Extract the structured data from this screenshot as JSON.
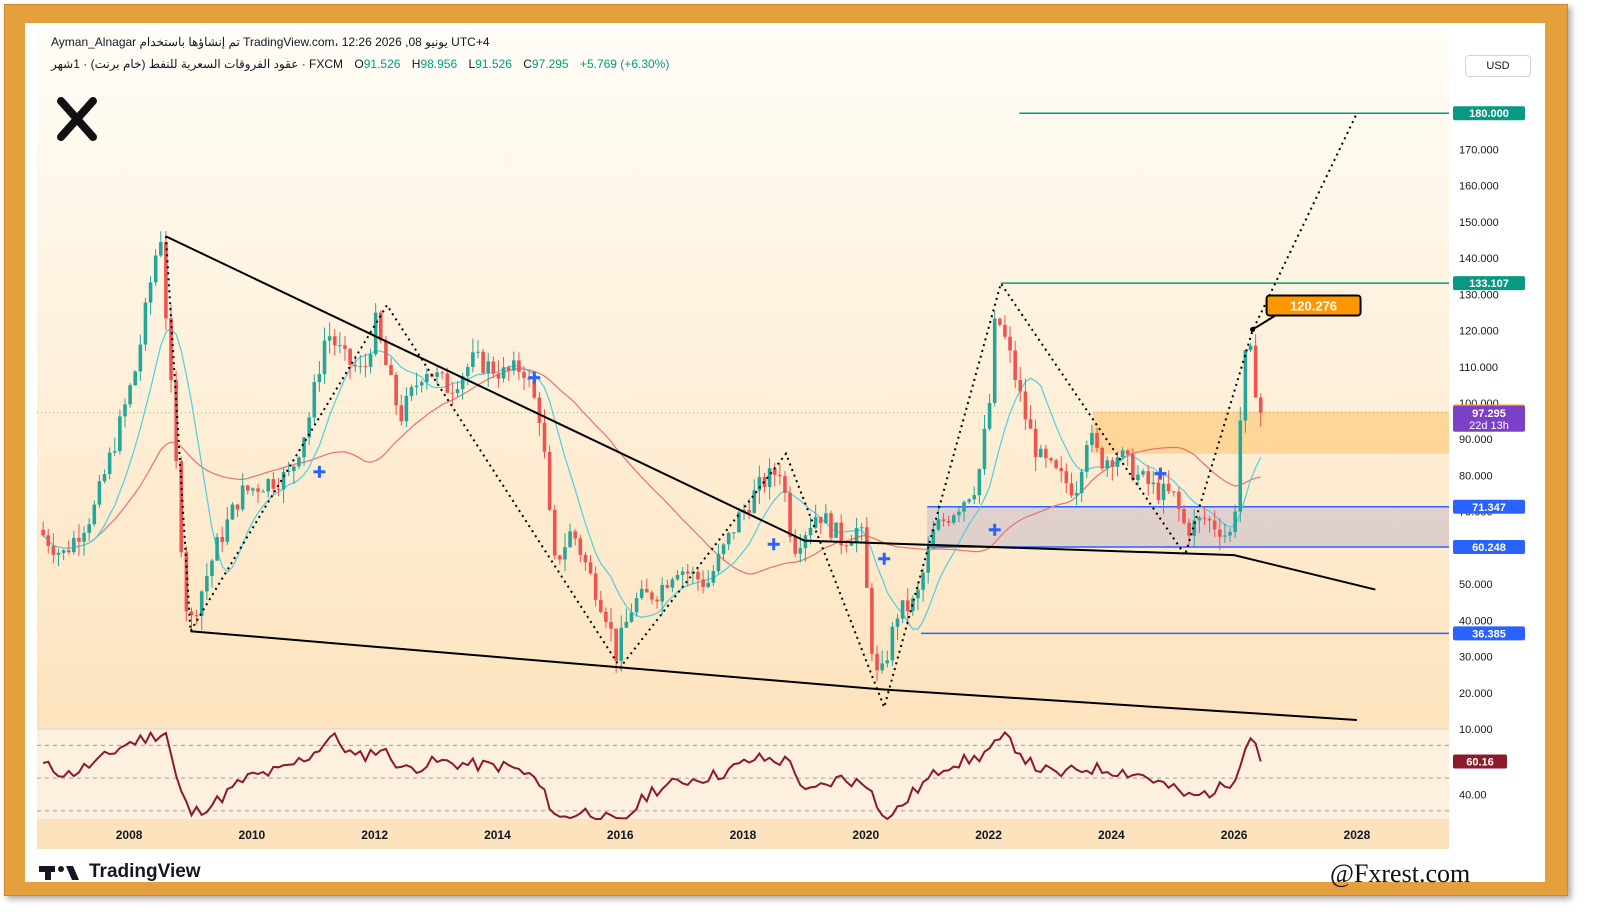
{
  "header": {
    "line1": "Ayman_Alnagar تم إنشاؤها باستخدام TradingView.com، 12:26 2026 ,08 يونيو UTC+4",
    "symbol": "عقود الفروقات السعرية للنفط (خام برنت) · 1شهر · FXCM",
    "open_label": "O",
    "open": "91.526",
    "high_label": "H",
    "high": "98.956",
    "low_label": "L",
    "low": "91.526",
    "close_label": "C",
    "close": "97.295",
    "change": "+5.769 (+6.30%)"
  },
  "currency": "USD",
  "brand": "TradingView",
  "handle": "@Fxrest.com",
  "colors": {
    "frame": "#e5a03e",
    "price_up": "#26a69a",
    "price_down": "#ef5350",
    "teal_level": "#089981",
    "blue_level": "#2962ff",
    "orange_label": "#ff9800",
    "purple_label": "#7b40c6",
    "rsi": "#8b1a2b"
  },
  "chart_data": {
    "type": "candlestick",
    "timeframe": "1M",
    "ylim": [
      10,
      190
    ],
    "y_ticks": [
      "10.000",
      "20.000",
      "30.000",
      "40.000",
      "50.000",
      "60.000",
      "70.000",
      "80.000",
      "90.000",
      "100.000",
      "110.000",
      "120.000",
      "130.000",
      "140.000",
      "150.000",
      "160.000",
      "170.000"
    ],
    "x_ticks": [
      "2008",
      "2010",
      "2012",
      "2014",
      "2016",
      "2018",
      "2020",
      "2022",
      "2024",
      "2026",
      "2028"
    ],
    "x_tick_years": [
      2008,
      2010,
      2012,
      2014,
      2016,
      2018,
      2020,
      2022,
      2024,
      2026,
      2028
    ],
    "xlim": [
      2006.5,
      2029.5
    ],
    "price_anchors": [
      [
        2006.6,
        65
      ],
      [
        2007.0,
        58
      ],
      [
        2007.5,
        70
      ],
      [
        2007.9,
        92
      ],
      [
        2008.2,
        110
      ],
      [
        2008.5,
        140
      ],
      [
        2008.6,
        146
      ],
      [
        2008.8,
        95
      ],
      [
        2009.0,
        45
      ],
      [
        2009.1,
        40
      ],
      [
        2009.5,
        60
      ],
      [
        2009.9,
        75
      ],
      [
        2010.3,
        78
      ],
      [
        2010.7,
        80
      ],
      [
        2011.0,
        95
      ],
      [
        2011.3,
        120
      ],
      [
        2011.6,
        112
      ],
      [
        2011.9,
        108
      ],
      [
        2012.1,
        122
      ],
      [
        2012.3,
        108
      ],
      [
        2012.5,
        96
      ],
      [
        2012.9,
        110
      ],
      [
        2013.3,
        104
      ],
      [
        2013.7,
        112
      ],
      [
        2014.2,
        108
      ],
      [
        2014.5,
        110
      ],
      [
        2014.8,
        95
      ],
      [
        2015.0,
        55
      ],
      [
        2015.3,
        65
      ],
      [
        2015.6,
        52
      ],
      [
        2015.9,
        40
      ],
      [
        2016.0,
        30
      ],
      [
        2016.3,
        45
      ],
      [
        2016.7,
        48
      ],
      [
        2017.0,
        55
      ],
      [
        2017.5,
        50
      ],
      [
        2018.0,
        68
      ],
      [
        2018.4,
        78
      ],
      [
        2018.7,
        82
      ],
      [
        2018.9,
        60
      ],
      [
        2019.3,
        70
      ],
      [
        2019.7,
        62
      ],
      [
        2020.0,
        66
      ],
      [
        2020.2,
        30
      ],
      [
        2020.3,
        22
      ],
      [
        2020.6,
        42
      ],
      [
        2020.9,
        45
      ],
      [
        2021.2,
        65
      ],
      [
        2021.6,
        72
      ],
      [
        2021.9,
        78
      ],
      [
        2022.1,
        100
      ],
      [
        2022.2,
        125
      ],
      [
        2022.4,
        115
      ],
      [
        2022.7,
        95
      ],
      [
        2022.9,
        85
      ],
      [
        2023.2,
        80
      ],
      [
        2023.5,
        76
      ],
      [
        2023.7,
        92
      ],
      [
        2023.9,
        84
      ],
      [
        2024.2,
        86
      ],
      [
        2024.5,
        80
      ],
      [
        2024.8,
        76
      ],
      [
        2025.1,
        74
      ],
      [
        2025.3,
        65
      ],
      [
        2025.6,
        68
      ],
      [
        2025.9,
        65
      ],
      [
        2026.0,
        62
      ],
      [
        2026.1,
        72
      ],
      [
        2026.2,
        100
      ],
      [
        2026.3,
        118
      ],
      [
        2026.4,
        108
      ],
      [
        2026.5,
        97.3
      ]
    ],
    "last_price": 97.295,
    "countdown": "22d 13h",
    "price_labels": [
      {
        "value": 180.0,
        "text": "180.000",
        "color": "teal"
      },
      {
        "value": 133.107,
        "text": "133.107",
        "color": "teal"
      },
      {
        "value": 97.66,
        "text": "97.660",
        "color": "orange"
      },
      {
        "value": 71.347,
        "text": "71.347",
        "color": "blue"
      },
      {
        "value": 60.248,
        "text": "60.248",
        "color": "blue"
      },
      {
        "value": 36.385,
        "text": "36.385",
        "color": "blue"
      }
    ],
    "callout": {
      "value": 120.276,
      "text": "120.276",
      "x": 2026.3
    },
    "horizontal_levels": [
      {
        "value": 180.0,
        "x_from": 2022.5,
        "color": "teal"
      },
      {
        "value": 133.107,
        "x_from": 2022.2,
        "color": "teal"
      },
      {
        "value": 71.347,
        "x_from": 2021.0,
        "color": "blue"
      },
      {
        "value": 60.248,
        "x_from": 2021.0,
        "color": "blue"
      },
      {
        "value": 36.385,
        "x_from": 2020.9,
        "color": "blue"
      }
    ],
    "zones": [
      {
        "x_from": 2023.7,
        "y_from": 86,
        "y_to": 97.66,
        "color": "orange"
      },
      {
        "x_from": 2021.0,
        "y_from": 60.248,
        "y_to": 71.347,
        "color": "purple"
      }
    ],
    "trend_lines": [
      {
        "points": [
          [
            2008.6,
            146
          ],
          [
            2019.0,
            62
          ],
          [
            2026.0,
            58
          ],
          [
            2028.3,
            48.5
          ]
        ]
      },
      {
        "points": [
          [
            2009.0,
            37
          ],
          [
            2016.0,
            27
          ],
          [
            2020.2,
            21
          ],
          [
            2028.0,
            12.5
          ]
        ]
      }
    ],
    "zigzag": [
      [
        2008.6,
        146
      ],
      [
        2009.0,
        37
      ],
      [
        2012.2,
        127
      ],
      [
        2016.0,
        27
      ],
      [
        2018.7,
        86
      ],
      [
        2020.3,
        16
      ],
      [
        2022.2,
        133
      ],
      [
        2025.2,
        58
      ],
      [
        2026.3,
        120
      ],
      [
        2028.0,
        180
      ]
    ],
    "markers": [
      [
        2011.1,
        81
      ],
      [
        2014.6,
        107
      ],
      [
        2018.5,
        61
      ],
      [
        2020.3,
        57
      ],
      [
        2022.1,
        65
      ],
      [
        2024.8,
        80.5
      ]
    ],
    "rsi": {
      "label": "60.16",
      "tick": "40.00",
      "value": 60.16,
      "ylim": [
        25,
        80
      ],
      "anchors": [
        [
          2006.6,
          58
        ],
        [
          2007.0,
          52
        ],
        [
          2007.5,
          60
        ],
        [
          2007.9,
          70
        ],
        [
          2008.3,
          75
        ],
        [
          2008.6,
          78
        ],
        [
          2008.8,
          45
        ],
        [
          2009.0,
          28
        ],
        [
          2009.4,
          35
        ],
        [
          2009.9,
          50
        ],
        [
          2010.5,
          55
        ],
        [
          2011.0,
          65
        ],
        [
          2011.3,
          76
        ],
        [
          2011.7,
          62
        ],
        [
          2012.1,
          68
        ],
        [
          2012.5,
          55
        ],
        [
          2013.0,
          60
        ],
        [
          2013.6,
          58
        ],
        [
          2014.2,
          57
        ],
        [
          2014.6,
          50
        ],
        [
          2015.0,
          25
        ],
        [
          2015.4,
          30
        ],
        [
          2016.0,
          22
        ],
        [
          2016.5,
          42
        ],
        [
          2017.0,
          48
        ],
        [
          2017.6,
          52
        ],
        [
          2018.2,
          62
        ],
        [
          2018.8,
          60
        ],
        [
          2019.0,
          40
        ],
        [
          2019.6,
          50
        ],
        [
          2020.1,
          45
        ],
        [
          2020.3,
          22
        ],
        [
          2020.8,
          42
        ],
        [
          2021.3,
          58
        ],
        [
          2021.8,
          62
        ],
        [
          2022.3,
          75
        ],
        [
          2022.7,
          58
        ],
        [
          2023.1,
          52
        ],
        [
          2023.6,
          56
        ],
        [
          2024.0,
          55
        ],
        [
          2024.5,
          52
        ],
        [
          2024.9,
          45
        ],
        [
          2025.3,
          38
        ],
        [
          2025.8,
          44
        ],
        [
          2026.0,
          50
        ],
        [
          2026.2,
          72
        ],
        [
          2026.3,
          76
        ],
        [
          2026.5,
          60.16
        ]
      ]
    }
  }
}
